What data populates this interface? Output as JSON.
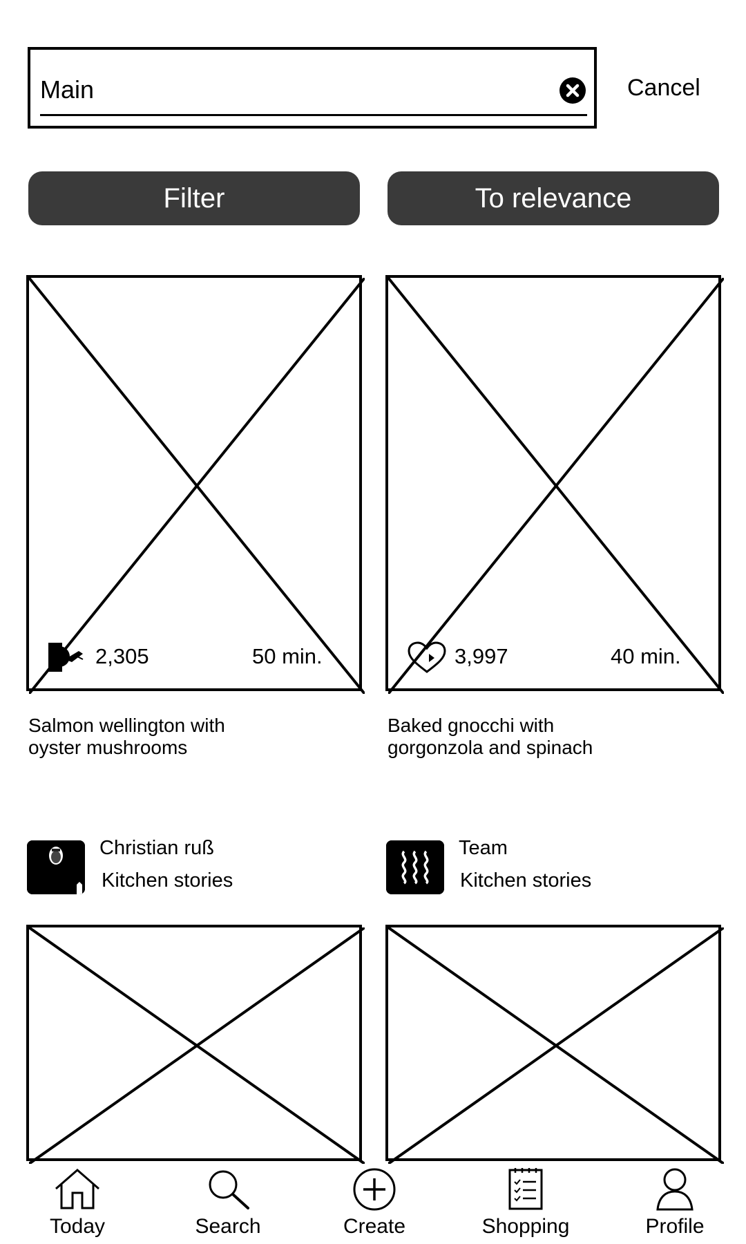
{
  "search": {
    "query": "Main",
    "cancel_label": "Cancel"
  },
  "actions": {
    "filter_label": "Filter",
    "sort_label": "To relevance"
  },
  "recipes": [
    {
      "likes": "2,305",
      "time": "50 min.",
      "title_line1": "Salmon wellington with",
      "title_line2": "oyster mushrooms",
      "author_name": "Christian ruß",
      "author_org": "Kitchen stories"
    },
    {
      "likes": "3,997",
      "time": "40 min.",
      "title_line1": "Baked gnocchi with",
      "title_line2": "gorgonzola and spinach",
      "author_name": "Team",
      "author_org": "Kitchen stories"
    }
  ],
  "nav": {
    "items": [
      {
        "label": "Today",
        "icon": "home-icon"
      },
      {
        "label": "Search",
        "icon": "search-icon"
      },
      {
        "label": "Create",
        "icon": "plus-circle-icon"
      },
      {
        "label": "Shopping",
        "icon": "checklist-icon"
      },
      {
        "label": "Profile",
        "icon": "user-icon"
      }
    ]
  }
}
